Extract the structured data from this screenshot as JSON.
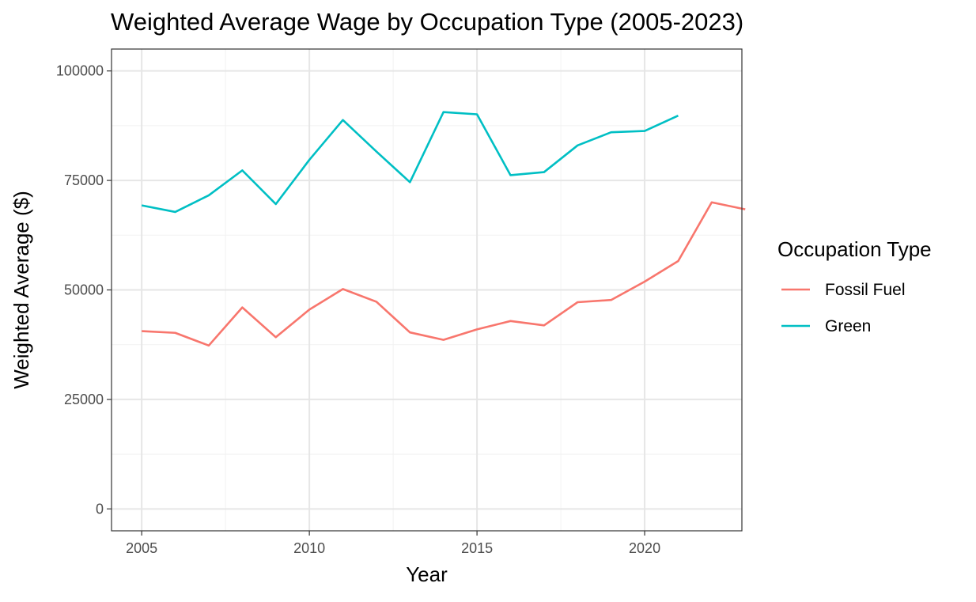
{
  "chart_data": {
    "type": "line",
    "title": "Weighted Average Wage by Occupation Type (2005-2023)",
    "xlabel": "Year",
    "ylabel": "Weighted Average ($)",
    "xlim": [
      2004.1,
      2022.9
    ],
    "ylim": [
      -5000,
      105000
    ],
    "x_ticks": [
      2005,
      2010,
      2015,
      2020
    ],
    "y_ticks": [
      0,
      25000,
      50000,
      75000,
      100000
    ],
    "grid": true,
    "legend": {
      "title": "Occupation Type",
      "position": "right"
    },
    "series": [
      {
        "name": "Fossil Fuel",
        "color": "#F8766D",
        "x": [
          2005,
          2006,
          2007,
          2008,
          2009,
          2010,
          2011,
          2012,
          2013,
          2014,
          2015,
          2016,
          2017,
          2018,
          2019,
          2020,
          2021,
          2022,
          2023
        ],
        "values": [
          40600,
          40200,
          37300,
          46000,
          39200,
          45500,
          50200,
          47300,
          40300,
          38600,
          41000,
          42900,
          41900,
          47200,
          47700,
          51900,
          56600,
          70000,
          68400
        ]
      },
      {
        "name": "Green",
        "color": "#00BFC4",
        "x": [
          2005,
          2006,
          2007,
          2008,
          2009,
          2010,
          2011,
          2012,
          2013,
          2014,
          2015,
          2016,
          2017,
          2018,
          2019,
          2020,
          2021
        ],
        "values": [
          69300,
          67800,
          71600,
          77300,
          69600,
          79700,
          88800,
          81600,
          74600,
          90600,
          90100,
          76200,
          76900,
          83000,
          86000,
          86300,
          89800
        ]
      }
    ]
  }
}
